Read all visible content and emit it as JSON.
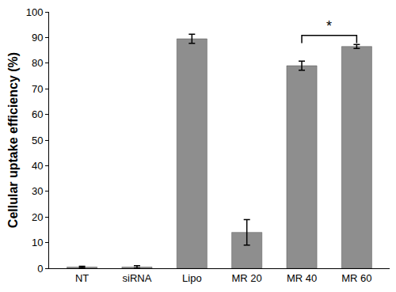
{
  "chart_data": {
    "type": "bar",
    "y_label": "Cellular uptake efficiency (%)",
    "categories": [
      "NT",
      "siRNA",
      "Lipo",
      "MR 20",
      "MR 40",
      "MR 60"
    ],
    "values": [
      0.5,
      0.5,
      89.5,
      14,
      79,
      86.5
    ],
    "errors": [
      0.3,
      0.5,
      1.8,
      5,
      1.8,
      0.8
    ],
    "color": "#8e8e8e",
    "ylim": [
      0,
      100
    ],
    "yticks": [
      0,
      10,
      20,
      30,
      40,
      50,
      60,
      70,
      80,
      90,
      100
    ],
    "grid": false,
    "annotations": [
      {
        "text": "*",
        "between": [
          "MR 40",
          "MR 60"
        ]
      }
    ]
  }
}
